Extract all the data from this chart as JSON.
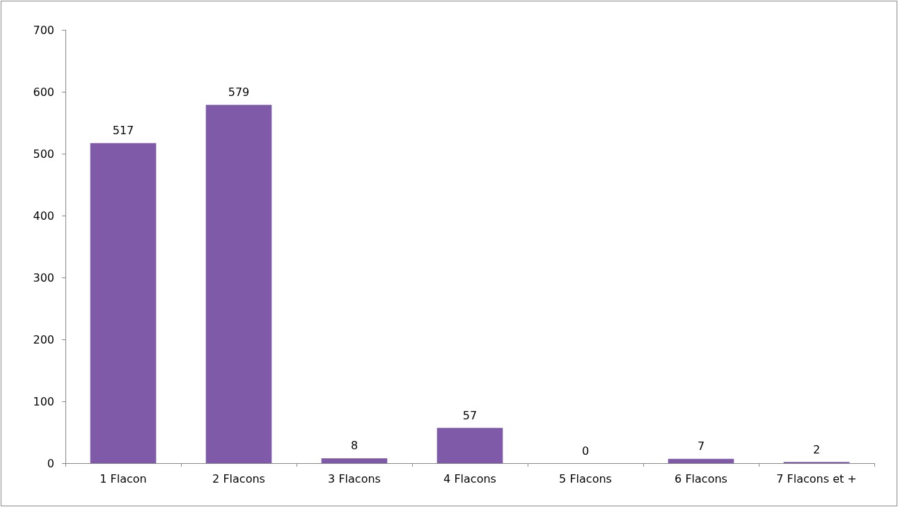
{
  "chart_data": {
    "type": "bar",
    "categories": [
      "1 Flacon",
      "2 Flacons",
      "3 Flacons",
      "4 Flacons",
      "5 Flacons",
      "6 Flacons",
      "7 Flacons et +"
    ],
    "values": [
      517,
      579,
      8,
      57,
      0,
      7,
      2
    ],
    "color": "#7f5aa8",
    "ylim": [
      0,
      700
    ],
    "yticks": [
      0,
      100,
      200,
      300,
      400,
      500,
      600,
      700
    ],
    "data_labels": true
  }
}
